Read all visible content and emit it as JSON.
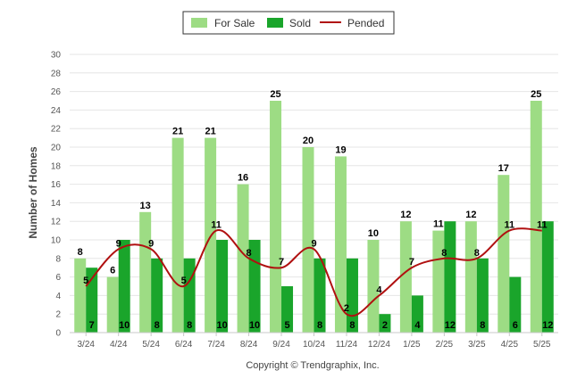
{
  "chart_data": {
    "type": "bar",
    "categories": [
      "3/24",
      "4/24",
      "5/24",
      "6/24",
      "7/24",
      "8/24",
      "9/24",
      "10/24",
      "11/24",
      "12/24",
      "1/25",
      "2/25",
      "3/25",
      "4/25",
      "5/25"
    ],
    "series": [
      {
        "name": "For Sale",
        "type": "bar",
        "color": "#9ddc84",
        "values": [
          8,
          6,
          13,
          21,
          21,
          16,
          25,
          20,
          19,
          10,
          12,
          11,
          12,
          17,
          25
        ]
      },
      {
        "name": "Sold",
        "type": "bar",
        "color": "#1aa52b",
        "values": [
          7,
          10,
          8,
          8,
          10,
          10,
          5,
          8,
          8,
          2,
          4,
          12,
          8,
          6,
          12
        ]
      },
      {
        "name": "Pended",
        "type": "line",
        "color": "#b01010",
        "values": [
          5,
          9,
          9,
          5,
          11,
          8,
          7,
          9,
          2,
          4,
          7,
          8,
          8,
          11,
          11
        ]
      }
    ],
    "ylabel": "Number of Homes",
    "xlabel": "",
    "ylim": [
      0,
      30
    ],
    "yticks": [
      0,
      2,
      4,
      6,
      8,
      10,
      12,
      14,
      16,
      18,
      20,
      22,
      24,
      26,
      28,
      30
    ],
    "grid": true,
    "legend_position": "top-center"
  },
  "footer": {
    "copyright": "Copyright © Trendgraphix, Inc."
  }
}
